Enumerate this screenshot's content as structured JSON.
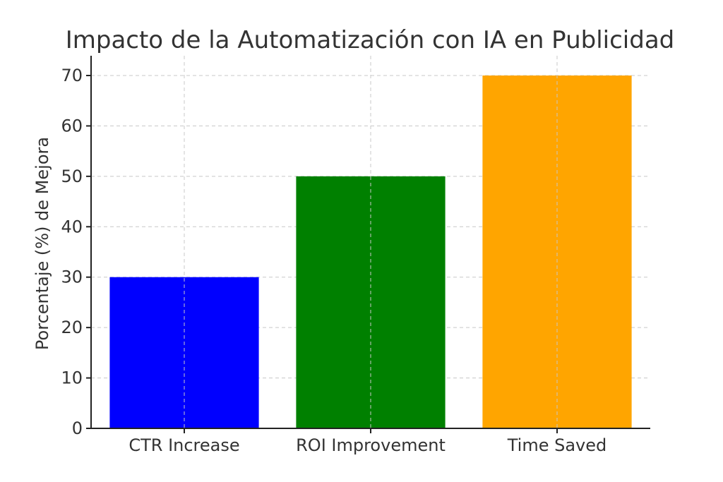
{
  "chart_data": {
    "type": "bar",
    "title": "Impacto de la Automatización con IA en Publicidad",
    "xlabel": "",
    "ylabel": "Porcentaje (%) de Mejora",
    "categories": [
      "CTR Increase",
      "ROI Improvement",
      "Time Saved"
    ],
    "values": [
      30,
      50,
      70
    ],
    "colors": [
      "#0000ff",
      "#008000",
      "#ffa500"
    ],
    "ylim": [
      0,
      70
    ],
    "yticks": [
      0,
      10,
      20,
      30,
      40,
      50,
      60,
      70
    ],
    "grid": true,
    "legend": "none"
  }
}
